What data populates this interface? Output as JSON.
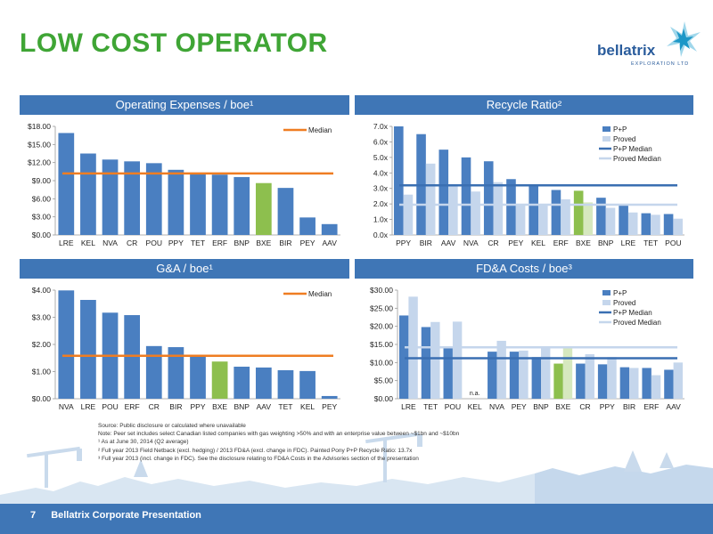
{
  "slide": {
    "title": "LOW COST OPERATOR",
    "page_number": "7",
    "footer_text": "Bellatrix Corporate Presentation"
  },
  "logo": {
    "name": "bellatrix",
    "tagline": "EXPLORATION LTD"
  },
  "colors": {
    "bar": "#4a7fc1",
    "highlight": "#8dbf4e",
    "light_bar": "#c5d6ec",
    "median_orange": "#ef7d22",
    "header": "#3f76b6",
    "title_green": "#3fa535"
  },
  "panels": {
    "opex": {
      "header": "Operating Expenses / boe¹"
    },
    "recycle": {
      "header": "Recycle Ratio²"
    },
    "ga": {
      "header": "G&A / boe¹"
    },
    "fda": {
      "header": "FD&A Costs / boe³"
    }
  },
  "footnotes": [
    "Source: Public disclosure or calculated where unavailable",
    "Note: Peer set includes select Canadian listed companies with gas weighting >50% and with an enterprise value between ~$1bn and ~$10bn",
    "¹ As at June 30, 2014 (Q2 average)",
    "² Full year 2013 Field Netback (excl. hedging) / 2013 FD&A (excl. change in FDC). Painted Pony P+P Recycle Ratio: 13.7x",
    "³ Full year 2013 (incl. change in FDC). See the disclosure relating to FD&A Costs in the Advisories section of the presentation"
  ],
  "chart_data": [
    {
      "id": "opex",
      "type": "bar",
      "categories": [
        "LRE",
        "KEL",
        "NVA",
        "CR",
        "POU",
        "PPY",
        "TET",
        "ERF",
        "BNP",
        "BXE",
        "BIR",
        "PEY",
        "AAV"
      ],
      "values": [
        16.9,
        13.5,
        12.5,
        12.2,
        11.9,
        10.8,
        10.2,
        10.0,
        9.6,
        8.6,
        7.8,
        2.9,
        1.8
      ],
      "highlight": "BXE",
      "median": 10.2,
      "median_label": "Median",
      "ylim": [
        0,
        18
      ],
      "yticks": [
        0,
        3,
        6,
        9,
        12,
        15,
        18
      ],
      "ytick_labels": [
        "$0.00",
        "$3.00",
        "$6.00",
        "$9.00",
        "$12.00",
        "$15.00",
        "$18.00"
      ],
      "legend": "top-right"
    },
    {
      "id": "recycle",
      "type": "bar",
      "categories": [
        "PPY",
        "BIR",
        "AAV",
        "NVA",
        "CR",
        "PEY",
        "KEL",
        "ERF",
        "BXE",
        "BNP",
        "LRE",
        "TET",
        "POU"
      ],
      "series": [
        {
          "name": "P+P",
          "values": [
            7.0,
            6.5,
            5.5,
            5.0,
            4.75,
            3.6,
            3.2,
            2.9,
            2.85,
            2.4,
            1.9,
            1.4,
            1.35
          ]
        },
        {
          "name": "Proved",
          "values": [
            2.6,
            4.6,
            3.2,
            2.8,
            3.4,
            1.9,
            2.0,
            2.3,
            2.1,
            1.75,
            1.45,
            1.3,
            1.05
          ]
        }
      ],
      "highlight": "BXE",
      "medians": [
        {
          "name": "P+P Median",
          "value": 3.2
        },
        {
          "name": "Proved Median",
          "value": 1.95
        }
      ],
      "ylim": [
        0,
        7
      ],
      "yticks": [
        0,
        1,
        2,
        3,
        4,
        5,
        6,
        7
      ],
      "ytick_labels": [
        "0.0x",
        "1.0x",
        "2.0x",
        "3.0x",
        "4.0x",
        "5.0x",
        "6.0x",
        "7.0x"
      ],
      "legend": "top-right"
    },
    {
      "id": "ga",
      "type": "bar",
      "categories": [
        "NVA",
        "LRE",
        "POU",
        "ERF",
        "CR",
        "BIR",
        "PPY",
        "BXE",
        "BNP",
        "AAV",
        "TET",
        "KEL",
        "PEY"
      ],
      "values": [
        3.99,
        3.64,
        3.17,
        3.08,
        1.94,
        1.9,
        1.58,
        1.37,
        1.18,
        1.15,
        1.05,
        1.02,
        0.1
      ],
      "highlight": "BXE",
      "median": 1.58,
      "median_label": "Median",
      "ylim": [
        0,
        4
      ],
      "yticks": [
        0,
        1,
        2,
        3,
        4
      ],
      "ytick_labels": [
        "$0.00",
        "$1.00",
        "$2.00",
        "$3.00",
        "$4.00"
      ],
      "legend": "top-right"
    },
    {
      "id": "fda",
      "type": "bar",
      "categories": [
        "LRE",
        "TET",
        "POU",
        "KEL",
        "NVA",
        "PEY",
        "BNP",
        "BXE",
        "CR",
        "PPY",
        "BIR",
        "ERF",
        "AAV"
      ],
      "series": [
        {
          "name": "P+P",
          "values": [
            23.0,
            19.8,
            14.0,
            0,
            13.0,
            13.0,
            11.5,
            9.7,
            9.7,
            9.5,
            8.7,
            8.5,
            8.0
          ]
        },
        {
          "name": "Proved",
          "values": [
            28.2,
            21.2,
            21.3,
            0,
            16.0,
            13.3,
            14.0,
            14.0,
            12.3,
            11.5,
            8.5,
            6.5,
            10.0
          ]
        }
      ],
      "na_label": "n.a.",
      "na_category": "KEL",
      "highlight": "BXE",
      "medians": [
        {
          "name": "P+P Median",
          "value": 11.2
        },
        {
          "name": "Proved Median",
          "value": 14.2
        }
      ],
      "ylim": [
        0,
        30
      ],
      "yticks": [
        0,
        5,
        10,
        15,
        20,
        25,
        30
      ],
      "ytick_labels": [
        "$0.00",
        "$5.00",
        "$10.00",
        "$15.00",
        "$20.00",
        "$25.00",
        "$30.00"
      ],
      "legend": "top-right"
    }
  ]
}
